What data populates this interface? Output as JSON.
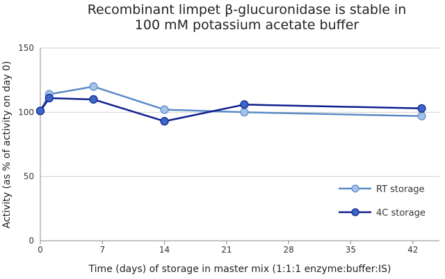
{
  "chart_data": {
    "type": "line",
    "title_line1": "Recombinant limpet β-glucuronidase is stable in",
    "title_line2": "100 mM potassium acetate buffer",
    "xlabel": "Time (days) of storage in master mix (1:1:1 enzyme:buffer:IS)",
    "ylabel": "Activity (as % of activity on day 0)",
    "xlim": [
      0,
      45
    ],
    "ylim": [
      0,
      150
    ],
    "xticks": [
      "0",
      "7",
      "14",
      "21",
      "28",
      "35",
      "42"
    ],
    "yticks": [
      "0",
      "50",
      "100",
      "150"
    ],
    "grid": "horizontal",
    "legend_position": "bottom-right",
    "series": [
      {
        "name": "RT storage",
        "color": "#5a8ac6",
        "marker_fill": "#a7c0ea",
        "x": [
          0,
          1,
          6,
          14,
          23,
          43
        ],
        "y": [
          101,
          114,
          120,
          102,
          100,
          97
        ]
      },
      {
        "name": "4C storage",
        "color": "#0e1d8c",
        "marker_fill": "#3b67c8",
        "x": [
          0,
          1,
          6,
          14,
          23,
          43
        ],
        "y": [
          101,
          111,
          110,
          93,
          106,
          103
        ]
      }
    ]
  }
}
